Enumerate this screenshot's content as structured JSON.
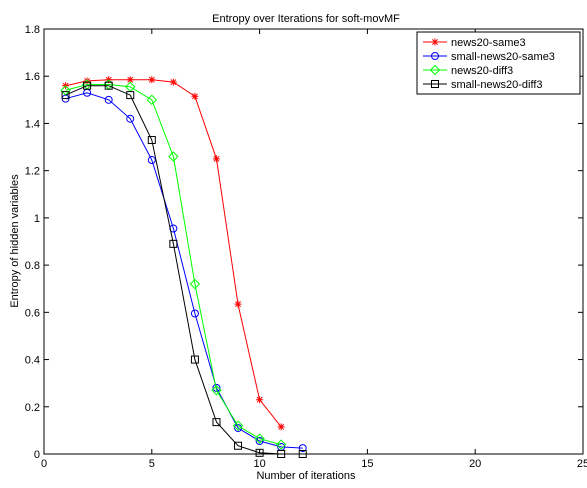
{
  "chart_data": {
    "type": "line",
    "title": "Entropy over Iterations for soft-movMF",
    "xlabel": "Number of iterations",
    "ylabel": "Entropy of hidden variables",
    "xlim": [
      0,
      25
    ],
    "ylim": [
      0,
      1.8
    ],
    "xticks": [
      "0",
      "5",
      "10",
      "15",
      "20",
      "25"
    ],
    "yticks": [
      "0",
      "0.2",
      "0.4",
      "0.6",
      "0.8",
      "1",
      "1.2",
      "1.4",
      "1.6",
      "1.8"
    ],
    "grid": false,
    "legend_position": "top-right",
    "series": [
      {
        "name": "news20-same3",
        "color": "#ff0000",
        "marker": "asterisk",
        "x": [
          1,
          2,
          3,
          4,
          5,
          6,
          7,
          8,
          9,
          10,
          11
        ],
        "y": [
          1.56,
          1.58,
          1.585,
          1.585,
          1.585,
          1.575,
          1.515,
          1.25,
          0.635,
          0.23,
          0.115
        ]
      },
      {
        "name": "small-news20-same3",
        "color": "#0000ff",
        "marker": "circle",
        "x": [
          1,
          2,
          3,
          4,
          5,
          6,
          7,
          8,
          9,
          10,
          11,
          12
        ],
        "y": [
          1.505,
          1.53,
          1.5,
          1.42,
          1.245,
          0.955,
          0.595,
          0.28,
          0.11,
          0.055,
          0.03,
          0.025
        ]
      },
      {
        "name": "news20-diff3",
        "color": "#00ff00",
        "marker": "diamond",
        "x": [
          1,
          2,
          3,
          4,
          5,
          6,
          7,
          8,
          9,
          10,
          11
        ],
        "y": [
          1.54,
          1.565,
          1.565,
          1.555,
          1.5,
          1.26,
          0.72,
          0.27,
          0.12,
          0.065,
          0.04
        ]
      },
      {
        "name": "small-news20-diff3",
        "color": "#000000",
        "marker": "square",
        "x": [
          1,
          2,
          3,
          4,
          5,
          6,
          7,
          8,
          9,
          10,
          11,
          12
        ],
        "y": [
          1.52,
          1.56,
          1.56,
          1.52,
          1.33,
          0.89,
          0.4,
          0.135,
          0.035,
          0.005,
          0.0,
          0.0
        ]
      }
    ]
  }
}
